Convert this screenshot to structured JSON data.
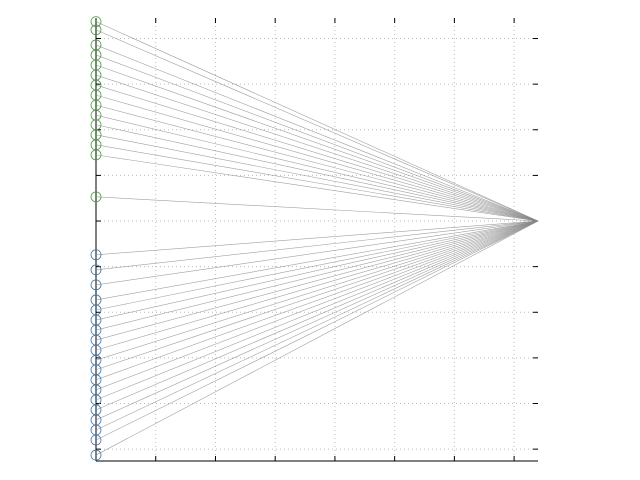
{
  "chart_data": {
    "type": "line",
    "x": [
      0,
      7.4
    ],
    "xlim": [
      0,
      7.4
    ],
    "xticks": [
      0,
      1,
      2,
      3,
      4,
      5,
      6,
      7
    ],
    "ylim": [
      -0.26,
      9.45
    ],
    "yticks": [
      0,
      1,
      2,
      3,
      4,
      5,
      6,
      7,
      8,
      9
    ],
    "grid": true,
    "line_color": "#888888",
    "series": [
      {
        "color": "#4a9e3f",
        "lines": [
          [
            9.37,
            5
          ],
          [
            9.19,
            5
          ],
          [
            8.86,
            5
          ],
          [
            8.64,
            5
          ],
          [
            8.42,
            5
          ],
          [
            8.2,
            5
          ],
          [
            7.98,
            5
          ],
          [
            7.76,
            5
          ],
          [
            7.54,
            5
          ],
          [
            7.32,
            5
          ],
          [
            7.11,
            5
          ],
          [
            6.89,
            5
          ],
          [
            6.67,
            5
          ],
          [
            6.45,
            5
          ],
          [
            5.53,
            5
          ]
        ]
      },
      {
        "color": "#3b78b0",
        "lines": [
          [
            4.26,
            5
          ],
          [
            3.93,
            5
          ],
          [
            3.6,
            5
          ],
          [
            3.27,
            5
          ],
          [
            3.05,
            5
          ],
          [
            2.83,
            5
          ],
          [
            2.61,
            5
          ],
          [
            2.39,
            5
          ],
          [
            2.17,
            5
          ],
          [
            1.95,
            5
          ],
          [
            1.74,
            5
          ],
          [
            1.52,
            5
          ],
          [
            1.3,
            5
          ],
          [
            1.08,
            5
          ],
          [
            0.86,
            5
          ],
          [
            0.64,
            5
          ],
          [
            0.42,
            5
          ],
          [
            0.2,
            5
          ],
          [
            -0.13,
            5
          ]
        ]
      }
    ]
  }
}
